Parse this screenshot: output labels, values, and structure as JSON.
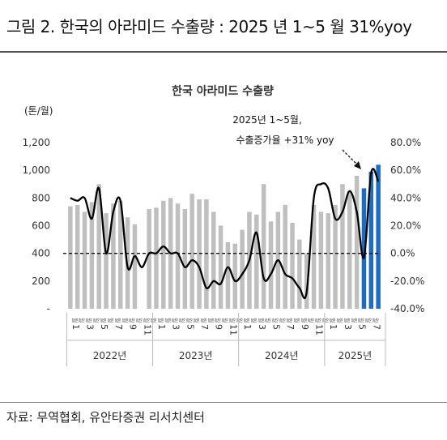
{
  "figure_title": "그림 2. 한국의 아라미드 수출량 : 2025 년 1~5 월 31%yoy",
  "source": "자료: 무역협회, 유안타증권 리서치센터",
  "chart_data": {
    "type": "bar",
    "title": "한국 아라미드 수출량",
    "ylabel": "(톤/월)",
    "ylim": [
      0,
      1200
    ],
    "yticks": [
      "-",
      "200",
      "400",
      "600",
      "800",
      "1,000",
      "1,200"
    ],
    "y2lim": [
      -40,
      80
    ],
    "y2ticks": [
      "-40.0%",
      "-20.0%",
      "0.0%",
      "20.0%",
      "40.0%",
      "60.0%",
      "80.0%"
    ],
    "month_label": "월",
    "month_numbers": [
      "1",
      "",
      "3",
      "",
      "5",
      "",
      "7",
      "",
      "9",
      "",
      "11",
      "",
      "1",
      "",
      "3",
      "",
      "5",
      "",
      "7",
      "",
      "9",
      "",
      "11",
      "",
      "1",
      "",
      "3",
      "",
      "5",
      "",
      "7",
      "",
      "9",
      "",
      "11",
      "",
      "1",
      "",
      "3",
      "",
      "5",
      "",
      "7"
    ],
    "year_groups": [
      "2022년",
      "2023년",
      "2024년",
      "2025년"
    ],
    "series": [
      {
        "kind": "bar",
        "values": [
          740,
          750,
          700,
          770,
          900,
          690,
          760,
          780,
          660,
          610,
          null,
          720,
          730,
          780,
          800,
          760,
          720,
          830,
          790,
          790,
          700,
          600,
          480,
          470,
          570,
          700,
          680,
          900,
          630,
          700,
          750,
          620,
          500,
          400,
          750,
          700,
          690,
          750,
          900,
          850,
          960,
          870,
          990,
          1040
        ],
        "colors": {
          "normal": "#bfbfbf",
          "highlight": "#1f6bbf"
        },
        "highlight_from": 41
      },
      {
        "kind": "line",
        "axis": "right",
        "values": [
          40,
          38,
          40,
          25,
          47,
          0,
          30,
          38,
          -10,
          -2,
          -10,
          0,
          0,
          5,
          0,
          0,
          -10,
          -5,
          -10,
          -25,
          -20,
          -22,
          -10,
          -20,
          -15,
          -5,
          15,
          -18,
          -15,
          -5,
          -15,
          -18,
          -25,
          -28,
          40,
          50,
          47,
          25,
          30,
          45,
          30,
          -3,
          58,
          52
        ]
      }
    ],
    "annotation": [
      "2025년 1~5월,",
      "수출증가율 +31% yoy"
    ],
    "reference_line": 0,
    "grid": false
  }
}
